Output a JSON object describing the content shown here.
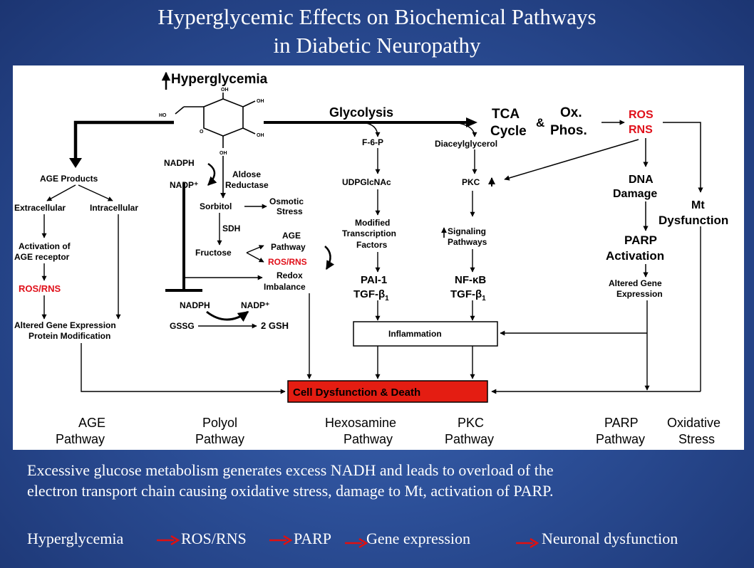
{
  "title": {
    "line1": "Hyperglycemic Effects on Biochemical Pathways",
    "line2": "in Diabetic Neuropathy"
  },
  "diagram": {
    "hyperglycemia": "Hyperglycemia",
    "glycolysis": "Glycolysis",
    "tca_line1": "TCA",
    "tca_line2": "Cycle",
    "ampersand": "&",
    "oxphos_line1": "Ox.",
    "oxphos_line2": "Phos.",
    "ros": "ROS",
    "rns": "RNS",
    "age_products": "AGE Products",
    "extracellular": "Extracellular",
    "intracellular": "Intracellular",
    "activation_line1": "Activation of",
    "activation_line2": "AGE receptor",
    "ros_rns_left": "ROS/RNS",
    "altered_left_line1": "Altered Gene Expression",
    "altered_left_line2": "Protein Modification",
    "nadph_top": "NADPH",
    "nadp_top": "NADP⁺",
    "aldose_line1": "Aldose",
    "aldose_line2": "Reductase",
    "sorbitol": "Sorbitol",
    "osmotic_line1": "Osmotic",
    "osmotic_line2": "Stress",
    "sdh": "SDH",
    "fructose": "Fructose",
    "age_pathway_line1": "AGE",
    "age_pathway_line2": "Pathway",
    "ros_rns_mid": "ROS/RNS",
    "redox_line1": "Redox",
    "redox_line2": "Imbalance",
    "nadph_bottom": "NADPH",
    "nadp_bottom": "NADP⁺",
    "gssg": "GSSG",
    "gsh": "2 GSH",
    "f6p": "F-6-P",
    "udp": "UDPGlcNAc",
    "modified_line1": "Modified",
    "modified_line2": "Transcription",
    "modified_line3": "Factors",
    "pai1": "PAI-1",
    "tgf_left": "TGF-β",
    "tgf_sub": "1",
    "diacylglycerol": "Diaceylglycerol",
    "pkc": "PKC",
    "signaling_line1": "Signaling",
    "signaling_line2": "Pathways",
    "nfkb": "NF-κB",
    "tgf_right": "TGF-β",
    "dna_line1": "DNA",
    "dna_line2": "Damage",
    "mt_line1": "Mt",
    "mt_line2": "Dysfunction",
    "parp_line1": "PARP",
    "parp_line2": "Activation",
    "altered_right_line1": "Altered Gene",
    "altered_right_line2": "Expression",
    "inflammation": "Inflammation",
    "cell_dysfunction": "Cell Dysfunction & Death",
    "pathway_labels": {
      "age_1": "AGE",
      "age_2": "Pathway",
      "polyol_1": "Polyol",
      "polyol_2": "Pathway",
      "hexo_1": "Hexosamine",
      "hexo_2": "Pathway",
      "pkc_1": "PKC",
      "pkc_2": "Pathway",
      "parp_1": "PARP",
      "parp_2": "Pathway",
      "ox_1": "Oxidative",
      "ox_2": "Stress"
    },
    "glucose_labels": {
      "ho": "HO",
      "oh": "OH"
    },
    "colors": {
      "red_text": "#e0101a",
      "red_box": "#e41d12"
    }
  },
  "caption": {
    "line1": "Excessive glucose metabolism generates excess NADH and leads to overload of the",
    "line2": "electron transport chain causing oxidative stress, damage to Mt, activation of PARP."
  },
  "flow": {
    "step1": "Hyperglycemia",
    "step2": "ROS/RNS",
    "step3": "PARP",
    "step4": "Gene expression",
    "step5": "Neuronal dysfunction",
    "arrow_color": "#e01010"
  }
}
